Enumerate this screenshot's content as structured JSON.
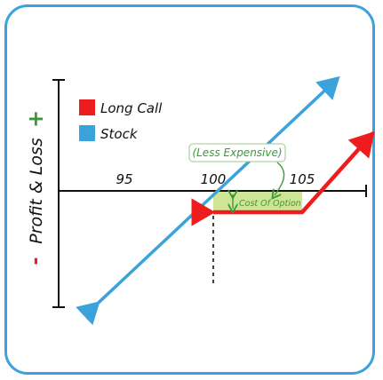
{
  "chart_data": {
    "type": "line",
    "ylabel": "Profit & Loss",
    "ylabel_minus": "-",
    "ylabel_plus": "+",
    "ticks": [
      {
        "x": 95,
        "label": "95"
      },
      {
        "x": 100,
        "label": "100"
      },
      {
        "x": 105,
        "label": "105"
      }
    ],
    "strike": 100,
    "premium": 1.25,
    "series": [
      {
        "name": "Long Call",
        "color": "#ee1c1c",
        "points": [
          [
            100,
            -1.25
          ],
          [
            105,
            -1.25
          ],
          [
            109,
            3.4
          ]
        ]
      },
      {
        "name": "Stock",
        "color": "#3aa3dc",
        "points": [
          [
            93.5,
            -6.6
          ],
          [
            107,
            6.6
          ]
        ]
      }
    ],
    "legend": [
      "Long Call",
      "Stock"
    ],
    "annotations": {
      "less_expensive": "(Less Expensive)",
      "cost_of_option": "Cost Of Option"
    },
    "colors": {
      "annotation": "#3a9a3a",
      "shade": "#cfe596",
      "frame": "#3aa3dc"
    }
  }
}
